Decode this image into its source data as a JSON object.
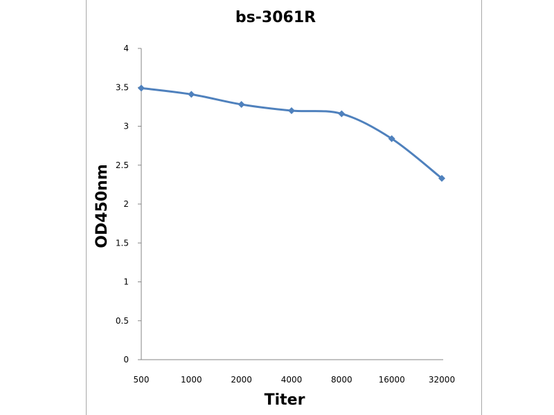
{
  "chart_data": {
    "type": "line",
    "title": "bs-3061R",
    "xlabel": "Titer",
    "ylabel": "OD450nm",
    "categories": [
      "500",
      "1000",
      "2000",
      "4000",
      "8000",
      "16000",
      "32000"
    ],
    "series": [
      {
        "values": [
          3.49,
          3.41,
          3.28,
          3.2,
          3.16,
          2.84,
          2.33
        ],
        "color": "#4f81bd"
      }
    ],
    "ylim": [
      0,
      4
    ],
    "yticks": [
      "0",
      "0.5",
      "1",
      "1.5",
      "2",
      "2.5",
      "3",
      "3.5",
      "4"
    ],
    "grid": false,
    "legend": "none",
    "marker": "diamond",
    "smooth": true
  }
}
